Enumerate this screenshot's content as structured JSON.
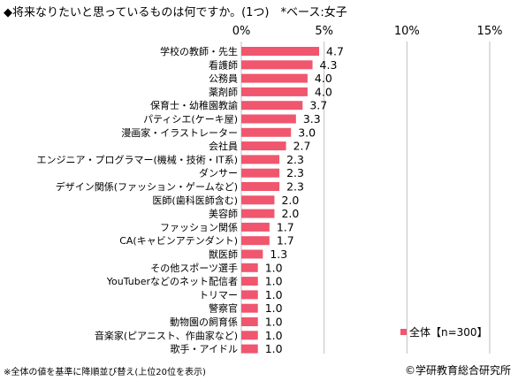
{
  "title": "◆将来なりたいと思っているものは何ですか。(1つ)　*ベース:女子",
  "footnote": "※全体の値を基準に降順並び替え(上位20位を表示)",
  "copyright": "©学研教育総合研究所",
  "colors": {
    "bar": "#f0566e",
    "grid": "#bfbfbf"
  },
  "chart_data": {
    "type": "bar",
    "orientation": "horizontal",
    "xlim": [
      0,
      15
    ],
    "x_ticks": [
      "0%",
      "5%",
      "10%",
      "15%"
    ],
    "categories": [
      "学校の教師・先生",
      "看護師",
      "公務員",
      "薬剤師",
      "保育士・幼稚園教諭",
      "パティシエ(ケーキ屋)",
      "漫画家・イラストレーター",
      "会社員",
      "エンジニア・プログラマー(機械・技術・IT系)",
      "ダンサー",
      "デザイン関係(ファッション・ゲームなど)",
      "医師(歯科医師含む)",
      "美容師",
      "ファッション関係",
      "CA(キャビンアテンダント)",
      "獣医師",
      "その他スポーツ選手",
      "YouTuberなどのネット配信者",
      "トリマー",
      "警察官",
      "動物園の飼育係",
      "音楽家(ピアニスト、作曲家など)",
      "歌手・アイドル"
    ],
    "series": [
      {
        "name": "全体【n=300】",
        "values": [
          4.7,
          4.3,
          4.0,
          4.0,
          3.7,
          3.3,
          3.0,
          2.7,
          2.3,
          2.3,
          2.3,
          2.0,
          2.0,
          1.7,
          1.7,
          1.3,
          1.0,
          1.0,
          1.0,
          1.0,
          1.0,
          1.0,
          1.0
        ],
        "labels": [
          "4.7",
          "4.3",
          "4.0",
          "4.0",
          "3.7",
          "3.3",
          "3.0",
          "2.7",
          "2.3",
          "2.3",
          "2.3",
          "2.0",
          "2.0",
          "1.7",
          "1.7",
          "1.3",
          "1.0",
          "1.0",
          "1.0",
          "1.0",
          "1.0",
          "1.0",
          "1.0"
        ]
      }
    ],
    "grid": true,
    "legend_position": "bottom-right"
  }
}
